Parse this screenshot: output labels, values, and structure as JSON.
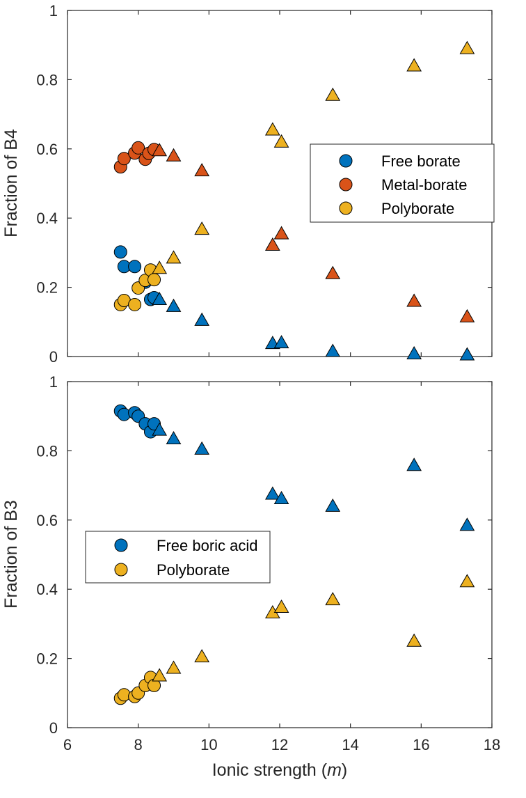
{
  "chart_data": [
    {
      "type": "scatter",
      "panel": "top",
      "ylabel": "Fraction of B4",
      "xlabel": "",
      "xlim": [
        6,
        18
      ],
      "ylim": [
        0,
        1
      ],
      "xticks": [
        6,
        8,
        10,
        12,
        14,
        16,
        18
      ],
      "yticks": [
        0,
        0.2,
        0.4,
        0.6,
        0.8,
        1
      ],
      "ytick_labels": [
        "0",
        "0.2",
        "0.4",
        "0.6",
        "0.8",
        "1"
      ],
      "legend": [
        "Free borate",
        "Metal-borate",
        "Polyborate"
      ],
      "legend_position": "right-middle",
      "series": [
        {
          "name": "Free borate",
          "color": "#0072BD",
          "circles": {
            "x": [
              7.5,
              7.6,
              7.9,
              8.2,
              8.35,
              8.45
            ],
            "y": [
              0.302,
              0.26,
              0.26,
              0.215,
              0.165,
              0.17
            ]
          },
          "triangles": {
            "x": [
              8.6,
              9.0,
              9.8,
              11.8,
              12.05,
              13.5,
              15.8,
              17.3
            ],
            "y": [
              0.165,
              0.145,
              0.105,
              0.038,
              0.04,
              0.015,
              0.008,
              0.005
            ]
          }
        },
        {
          "name": "Metal-borate",
          "color": "#D95319",
          "circles": {
            "x": [
              7.5,
              7.6,
              7.9,
              8.0,
              8.2,
              8.3,
              8.45
            ],
            "y": [
              0.548,
              0.572,
              0.588,
              0.603,
              0.57,
              0.587,
              0.598
            ]
          },
          "triangles": {
            "x": [
              8.6,
              9.0,
              9.8,
              11.8,
              12.05,
              13.5,
              15.8,
              17.3
            ],
            "y": [
              0.595,
              0.58,
              0.537,
              0.322,
              0.355,
              0.24,
              0.16,
              0.115
            ]
          }
        },
        {
          "name": "Polyborate",
          "color": "#EDB120",
          "circles": {
            "x": [
              7.5,
              7.6,
              7.9,
              8.0,
              8.2,
              8.35,
              8.45
            ],
            "y": [
              0.15,
              0.162,
              0.15,
              0.198,
              0.22,
              0.25,
              0.222
            ]
          },
          "triangles": {
            "x": [
              8.6,
              9.0,
              9.8,
              11.8,
              12.05,
              13.5,
              15.8,
              17.3
            ],
            "y": [
              0.255,
              0.285,
              0.368,
              0.655,
              0.62,
              0.755,
              0.84,
              0.89
            ]
          }
        }
      ]
    },
    {
      "type": "scatter",
      "panel": "bottom",
      "ylabel": "Fraction of B3",
      "xlabel": "Ionic strength (m)",
      "xlabel_prefix": "Ionic strength (",
      "xlabel_italic": "m",
      "xlabel_suffix": ")",
      "xlim": [
        6,
        18
      ],
      "ylim": [
        0,
        1
      ],
      "xticks": [
        6,
        8,
        10,
        12,
        14,
        16,
        18
      ],
      "yticks": [
        0,
        0.2,
        0.4,
        0.6,
        0.8,
        1
      ],
      "ytick_labels": [
        "0",
        "0.2",
        "0.4",
        "0.6",
        "0.8",
        "1"
      ],
      "legend": [
        "Free boric acid",
        "Polyborate"
      ],
      "legend_position": "left-middle",
      "series": [
        {
          "name": "Free boric acid",
          "color": "#0072BD",
          "circles": {
            "x": [
              7.5,
              7.6,
              7.9,
              8.0,
              8.2,
              8.35,
              8.45
            ],
            "y": [
              0.915,
              0.905,
              0.91,
              0.9,
              0.878,
              0.855,
              0.878
            ]
          },
          "triangles": {
            "x": [
              8.6,
              9.0,
              9.8,
              11.8,
              12.05,
              13.5,
              15.8,
              17.3
            ],
            "y": [
              0.86,
              0.835,
              0.805,
              0.675,
              0.662,
              0.64,
              0.758,
              0.585
            ]
          }
        },
        {
          "name": "Polyborate",
          "color": "#EDB120",
          "circles": {
            "x": [
              7.5,
              7.6,
              7.9,
              8.0,
              8.2,
              8.35,
              8.45
            ],
            "y": [
              0.085,
              0.095,
              0.09,
              0.1,
              0.122,
              0.145,
              0.122
            ]
          },
          "triangles": {
            "x": [
              8.6,
              9.0,
              9.8,
              11.8,
              12.05,
              13.5,
              15.8,
              17.3
            ],
            "y": [
              0.15,
              0.172,
              0.205,
              0.332,
              0.348,
              0.37,
              0.25,
              0.422
            ]
          }
        }
      ]
    }
  ]
}
